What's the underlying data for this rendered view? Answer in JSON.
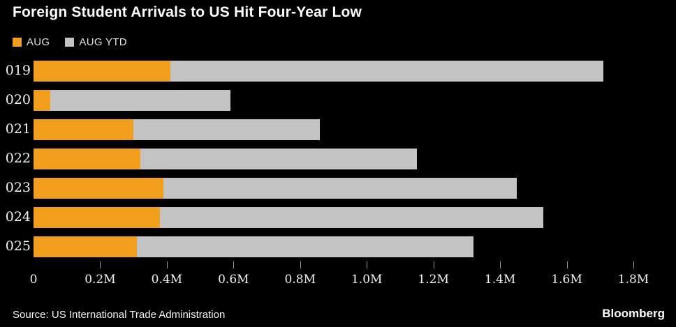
{
  "title": "Foreign Student Arrivals to US Hit Four-Year Low",
  "legend": [
    {
      "label": "AUG",
      "color": "#F09E1B"
    },
    {
      "label": "AUG YTD",
      "color": "#C3C3C3"
    }
  ],
  "source": "Source: US International Trade Administration",
  "brand": "Bloomberg",
  "colors": {
    "background": "#000000",
    "title_text": "#FFFFFF",
    "axis_text": "#F0F2EC",
    "tick_mark": "#9B9B9B"
  },
  "chart_data": {
    "type": "bar",
    "orientation": "horizontal",
    "title": "Foreign Student Arrivals to US Hit Four-Year Low",
    "categories": [
      "019",
      "020",
      "021",
      "022",
      "023",
      "024",
      "025"
    ],
    "series": [
      {
        "name": "AUG",
        "color": "#F09E1B",
        "values": [
          0.41,
          0.05,
          0.3,
          0.32,
          0.39,
          0.38,
          0.31
        ]
      },
      {
        "name": "AUG YTD",
        "color": "#C3C3C3",
        "values": [
          1.71,
          0.59,
          0.86,
          1.15,
          1.45,
          1.53,
          1.32
        ]
      }
    ],
    "unit": "M",
    "xlim": [
      0,
      1.8
    ],
    "x_ticks": [
      "0",
      "0.2M",
      "0.4M",
      "0.6M",
      "0.8M",
      "1.0M",
      "1.2M",
      "1.4M",
      "1.6M",
      "1.8M"
    ],
    "grid": false,
    "legend_position": "top-left",
    "note": "Orange AUG bar overlays the left portion of the gray AUG YTD bar; values in millions of arrivals"
  }
}
